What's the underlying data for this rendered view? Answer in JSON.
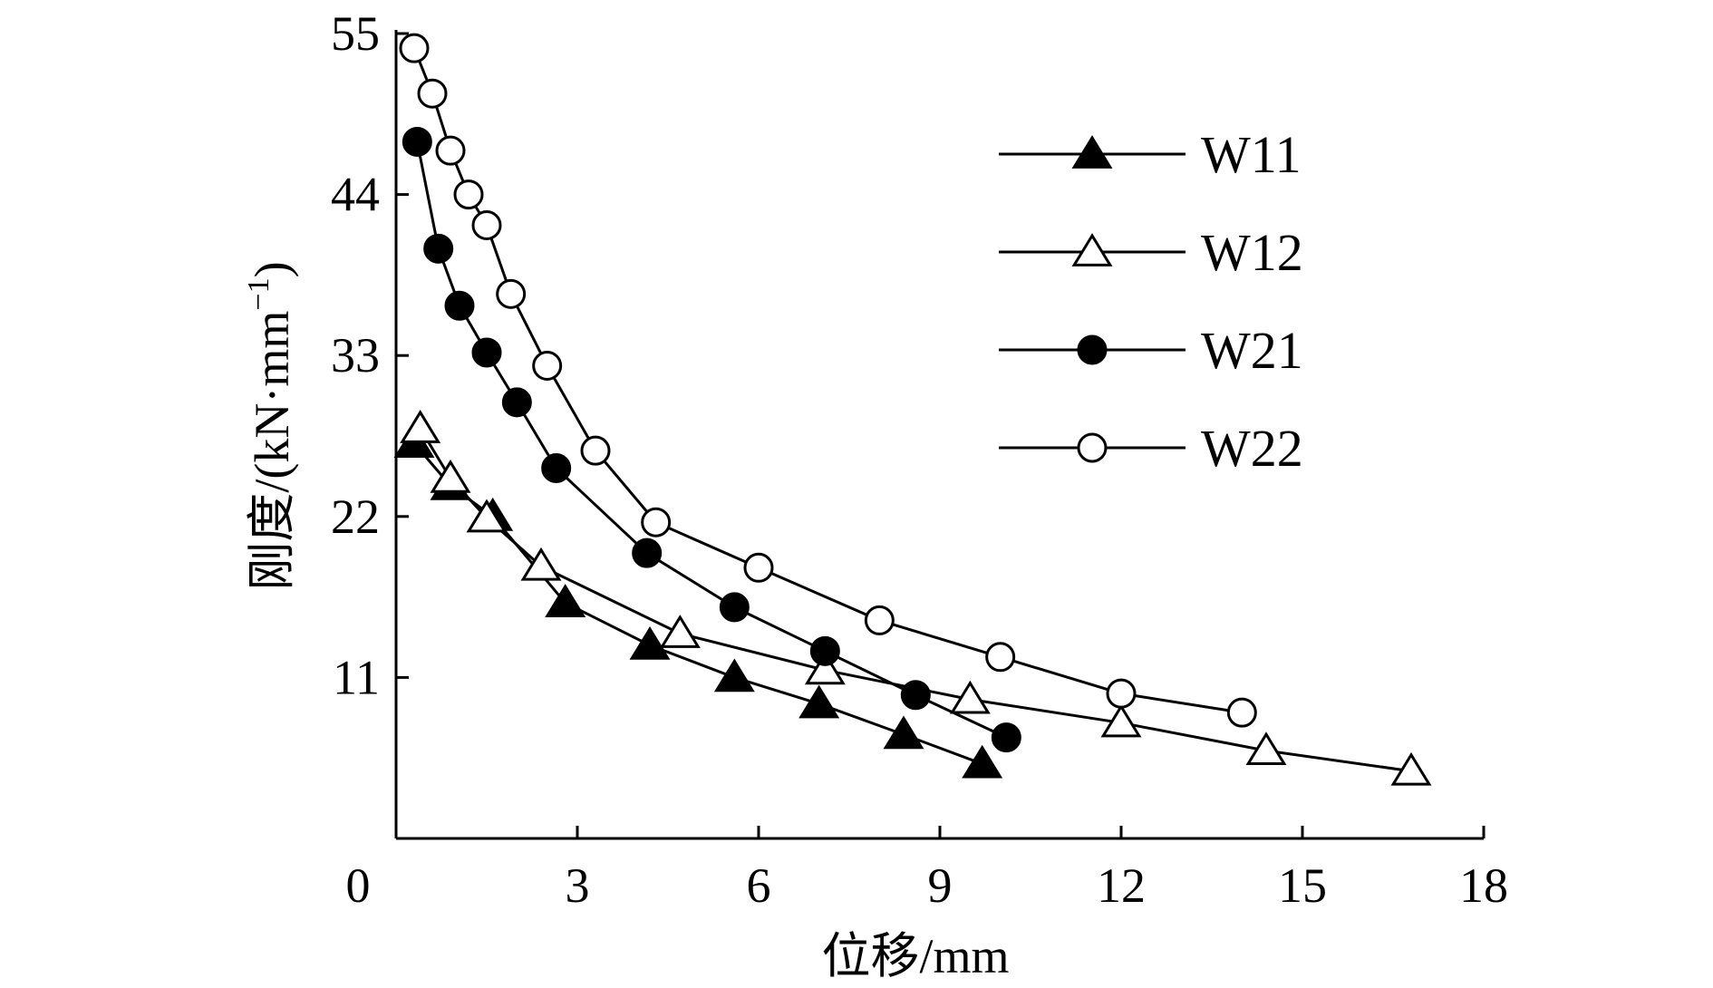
{
  "chart_data": {
    "type": "line",
    "title": "",
    "xlabel": "位移/mm",
    "ylabel": "刚度/(kN·mm",
    "ylabel_sup": "−1",
    "ylabel_close": ")",
    "xlim": [
      0,
      18
    ],
    "ylim": [
      0,
      55
    ],
    "xticks": [
      0,
      3,
      6,
      9,
      12,
      15,
      18
    ],
    "yticks": [
      11,
      22,
      33,
      44,
      55
    ],
    "grid": false,
    "legend_position": "top-right",
    "series": [
      {
        "name": "W11",
        "marker": "triangle",
        "fill": "filled",
        "x": [
          0.3,
          0.9,
          1.6,
          2.8,
          4.2,
          5.6,
          7.0,
          8.4,
          9.7
        ],
        "y": [
          27.0,
          24.1,
          22.0,
          16.1,
          13.2,
          11.0,
          9.2,
          7.1,
          5.1
        ]
      },
      {
        "name": "W12",
        "marker": "triangle",
        "fill": "hollow",
        "x": [
          0.4,
          0.9,
          1.5,
          2.4,
          4.7,
          7.1,
          9.5,
          12.0,
          14.4,
          16.8
        ],
        "y": [
          28.0,
          24.6,
          21.9,
          18.6,
          14.0,
          11.5,
          9.5,
          7.9,
          6.0,
          4.6
        ]
      },
      {
        "name": "W21",
        "marker": "circle",
        "fill": "filled",
        "x": [
          0.35,
          0.7,
          1.05,
          1.5,
          2.0,
          2.65,
          4.15,
          5.6,
          7.1,
          8.6,
          10.1
        ],
        "y": [
          47.6,
          40.3,
          36.4,
          33.2,
          29.8,
          25.3,
          19.5,
          15.8,
          12.8,
          9.8,
          6.9
        ]
      },
      {
        "name": "W22",
        "marker": "circle",
        "fill": "hollow",
        "x": [
          0.3,
          0.6,
          0.9,
          1.2,
          1.5,
          1.9,
          2.5,
          3.3,
          4.3,
          6.0,
          8.0,
          10.0,
          12.0,
          14.0
        ],
        "y": [
          54.0,
          50.9,
          47.0,
          44.0,
          41.9,
          37.2,
          32.3,
          26.5,
          21.6,
          18.5,
          14.9,
          12.4,
          9.9,
          8.6
        ]
      }
    ]
  }
}
